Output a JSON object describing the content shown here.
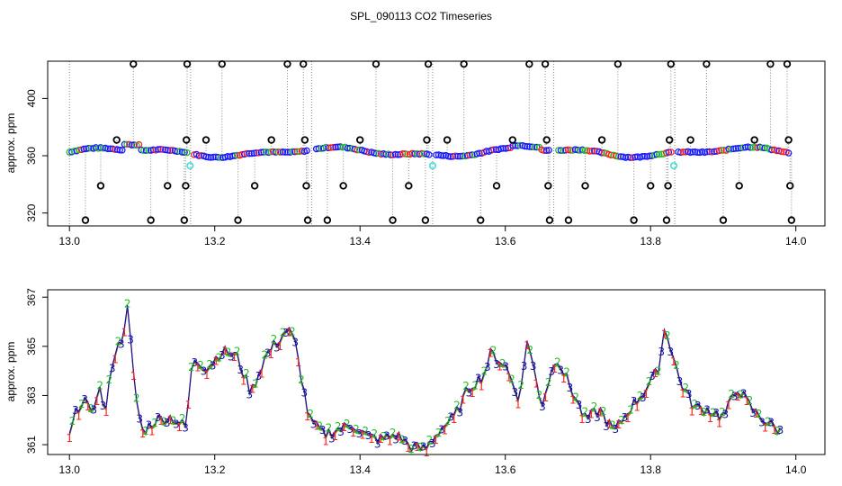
{
  "title": "SPL_090113  CO2 Timeseries",
  "colors": {
    "blue": "#1a1aff",
    "green": "#22c022",
    "red": "#ff2020",
    "cyan": "#33dddd",
    "black": "#000000",
    "navy": "#1010aa",
    "trace": "#888888"
  },
  "chart_data": [
    {
      "type": "scatter",
      "ylabel": "approx. ppm",
      "xlim": [
        12.97,
        14.04
      ],
      "ylim": [
        311,
        426
      ],
      "x_ticks": [
        13.0,
        13.2,
        13.4,
        13.6,
        13.8,
        14.0
      ],
      "x_tick_labels": [
        "13.0",
        "13.2",
        "13.4",
        "13.6",
        "13.8",
        "14.0"
      ],
      "y_ticks": [
        320,
        360,
        400
      ],
      "y_tick_labels": [
        "320",
        "360",
        "400"
      ],
      "flag_cycle_period_hours": 0.1667,
      "flag_cycle_starts": [
        13.0,
        13.1667,
        13.3333,
        13.5,
        13.6667,
        13.8333
      ],
      "flag_levels": [
        424,
        371,
        339,
        315
      ],
      "flag_points": [
        {
          "x": 13.022,
          "y": 315
        },
        {
          "x": 13.043,
          "y": 339
        },
        {
          "x": 13.065,
          "y": 371
        },
        {
          "x": 13.088,
          "y": 424
        },
        {
          "x": 13.112,
          "y": 315
        },
        {
          "x": 13.135,
          "y": 339
        },
        {
          "x": 13.158,
          "y": 315
        },
        {
          "x": 13.16,
          "y": 339
        },
        {
          "x": 13.161,
          "y": 371
        },
        {
          "x": 13.162,
          "y": 424
        },
        {
          "x": 13.188,
          "y": 371
        },
        {
          "x": 13.21,
          "y": 424
        },
        {
          "x": 13.232,
          "y": 315
        },
        {
          "x": 13.255,
          "y": 339
        },
        {
          "x": 13.278,
          "y": 371
        },
        {
          "x": 13.3,
          "y": 424
        },
        {
          "x": 13.322,
          "y": 424
        },
        {
          "x": 13.324,
          "y": 371
        },
        {
          "x": 13.326,
          "y": 339
        },
        {
          "x": 13.328,
          "y": 315
        },
        {
          "x": 13.355,
          "y": 315
        },
        {
          "x": 13.377,
          "y": 339
        },
        {
          "x": 13.4,
          "y": 371
        },
        {
          "x": 13.422,
          "y": 424
        },
        {
          "x": 13.445,
          "y": 315
        },
        {
          "x": 13.467,
          "y": 339
        },
        {
          "x": 13.49,
          "y": 315
        },
        {
          "x": 13.492,
          "y": 371
        },
        {
          "x": 13.494,
          "y": 424
        },
        {
          "x": 13.52,
          "y": 371
        },
        {
          "x": 13.543,
          "y": 424
        },
        {
          "x": 13.566,
          "y": 315
        },
        {
          "x": 13.588,
          "y": 339
        },
        {
          "x": 13.61,
          "y": 371
        },
        {
          "x": 13.633,
          "y": 424
        },
        {
          "x": 13.655,
          "y": 424
        },
        {
          "x": 13.657,
          "y": 371
        },
        {
          "x": 13.659,
          "y": 339
        },
        {
          "x": 13.661,
          "y": 315
        },
        {
          "x": 13.687,
          "y": 315
        },
        {
          "x": 13.71,
          "y": 339
        },
        {
          "x": 13.733,
          "y": 371
        },
        {
          "x": 13.755,
          "y": 424
        },
        {
          "x": 13.777,
          "y": 315
        },
        {
          "x": 13.8,
          "y": 339
        },
        {
          "x": 13.822,
          "y": 315
        },
        {
          "x": 13.824,
          "y": 339
        },
        {
          "x": 13.826,
          "y": 371
        },
        {
          "x": 13.828,
          "y": 424
        },
        {
          "x": 13.855,
          "y": 371
        },
        {
          "x": 13.877,
          "y": 424
        },
        {
          "x": 13.9,
          "y": 315
        },
        {
          "x": 13.922,
          "y": 339
        },
        {
          "x": 13.943,
          "y": 371
        },
        {
          "x": 13.965,
          "y": 424
        },
        {
          "x": 13.988,
          "y": 424
        },
        {
          "x": 13.99,
          "y": 371
        },
        {
          "x": 13.992,
          "y": 339
        },
        {
          "x": 13.994,
          "y": 315
        }
      ],
      "cyan_points": [
        {
          "x": 13.166,
          "y": 353
        },
        {
          "x": 13.5,
          "y": 353
        },
        {
          "x": 13.832,
          "y": 353
        }
      ],
      "grid": false
    },
    {
      "type": "line",
      "ylabel": "approx. ppm",
      "xlim": [
        12.97,
        14.04
      ],
      "ylim": [
        360.6,
        367.3
      ],
      "x_ticks": [
        13.0,
        13.2,
        13.4,
        13.6,
        13.8,
        14.0
      ],
      "x_tick_labels": [
        "13.0",
        "13.2",
        "13.4",
        "13.6",
        "13.8",
        "14.0"
      ],
      "y_ticks": [
        361,
        363,
        365,
        367
      ],
      "y_tick_labels": [
        "361",
        "363",
        "365",
        "367"
      ],
      "marker_digits": [
        "1",
        "2",
        "3"
      ],
      "series": [
        {
          "x": [
            13.0,
            13.01,
            13.02,
            13.03,
            13.04,
            13.05,
            13.06,
            13.07,
            13.08,
            13.09,
            13.1,
            13.12,
            13.14,
            13.16,
            13.17,
            13.19,
            13.21,
            13.23,
            13.25,
            13.27,
            13.29,
            13.3,
            13.31,
            13.33,
            13.35,
            13.37,
            13.39,
            13.41,
            13.43,
            13.45,
            13.47,
            13.49,
            13.51,
            13.53,
            13.55,
            13.57,
            13.58,
            13.6,
            13.62,
            13.63,
            13.65,
            13.67,
            13.69,
            13.71,
            13.73,
            13.75,
            13.77,
            13.79,
            13.81,
            13.82,
            13.84,
            13.86,
            13.88,
            13.9,
            13.92,
            13.94,
            13.96,
            13.98
          ],
          "values": [
            361.3,
            362.4,
            362.9,
            362.1,
            363.4,
            362.3,
            364.6,
            365.1,
            366.5,
            363.2,
            361.5,
            362.0,
            362.1,
            361.7,
            364.5,
            364.1,
            364.8,
            364.6,
            363.1,
            364.6,
            365.3,
            365.7,
            365.2,
            362.0,
            361.4,
            361.6,
            361.8,
            361.3,
            361.2,
            361.4,
            360.9,
            360.8,
            361.6,
            362.1,
            363.3,
            363.8,
            364.7,
            364.2,
            362.8,
            365.3,
            362.6,
            364.6,
            363.3,
            362.0,
            362.4,
            361.5,
            362.4,
            363.1,
            364.0,
            365.8,
            363.6,
            362.5,
            362.4,
            362.1,
            363.3,
            362.4,
            361.9,
            361.5
          ]
        }
      ],
      "grid": false
    }
  ]
}
